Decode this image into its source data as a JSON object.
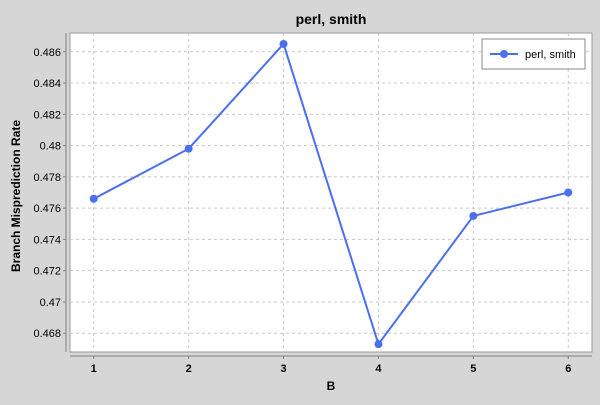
{
  "chart_data": {
    "type": "line",
    "title": "perl, smith",
    "xlabel": "B",
    "ylabel": "Branch Misprediction Rate",
    "x": [
      1,
      2,
      3,
      4,
      5,
      6
    ],
    "series": [
      {
        "name": "perl, smith",
        "values": [
          0.4766,
          0.4798,
          0.4865,
          0.4673,
          0.4755,
          0.477
        ]
      }
    ],
    "xlim": [
      0.75,
      6.25
    ],
    "ylim": [
      0.4668,
      0.4872
    ],
    "x_ticks": [
      1,
      2,
      3,
      4,
      5,
      6
    ],
    "x_tick_labels": [
      "1",
      "2",
      "3",
      "4",
      "5",
      "6"
    ],
    "y_ticks": [
      0.468,
      0.47,
      0.472,
      0.474,
      0.476,
      0.478,
      0.48,
      0.482,
      0.484,
      0.486
    ],
    "y_tick_labels": [
      "0.468",
      "0.47",
      "0.472",
      "0.474",
      "0.476",
      "0.478",
      "0.48",
      "0.482",
      "0.484",
      "0.486"
    ],
    "grid": true,
    "legend_position": "top-right",
    "colors": {
      "series": "#4a6ff0",
      "background": "#d6d6d6",
      "plot_background": "#ffffff",
      "grid": "#c8c8c8"
    }
  }
}
